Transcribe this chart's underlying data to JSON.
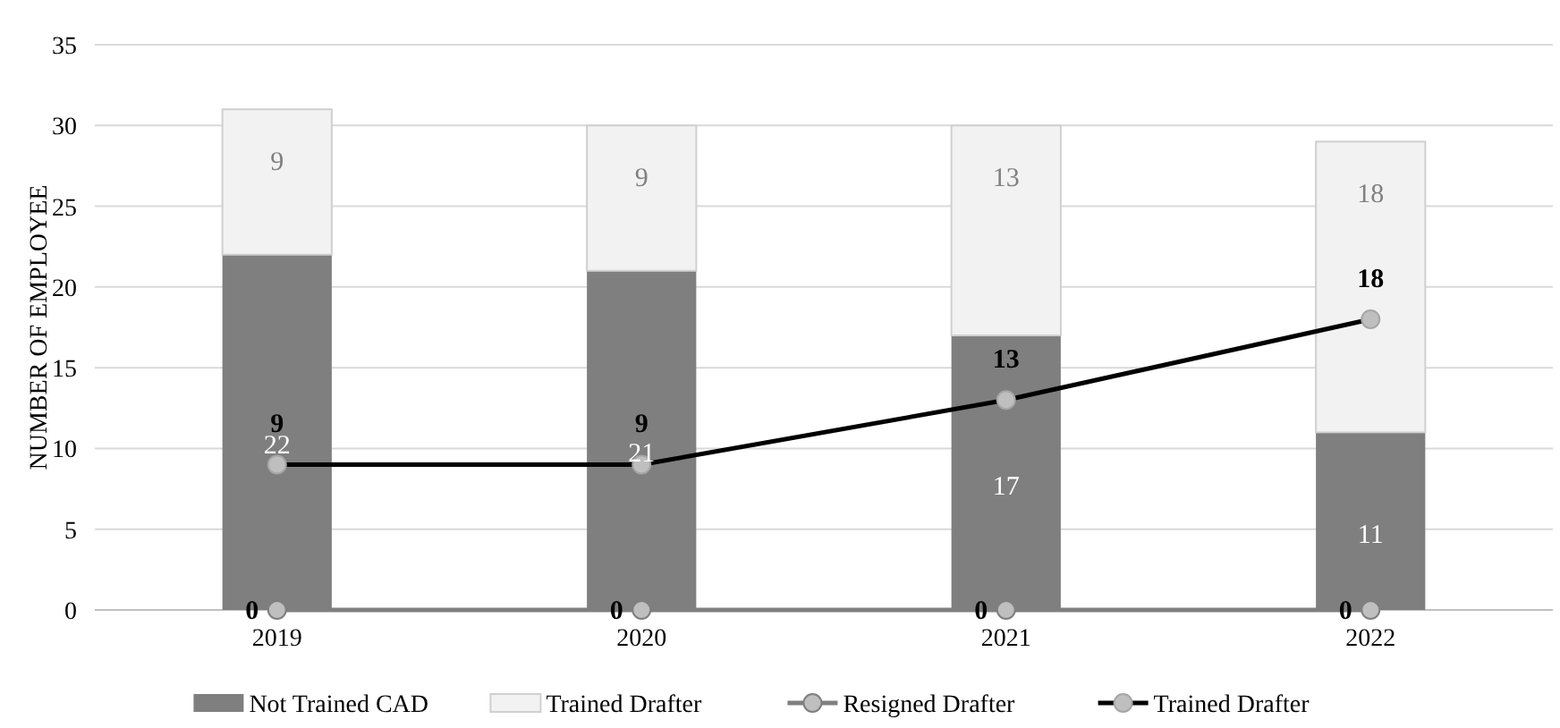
{
  "chart_data": {
    "type": "bar",
    "stacked": true,
    "ylabel": "NUMBER OF EMPLOYEE",
    "categories": [
      "2019",
      "2020",
      "2021",
      "2022"
    ],
    "series": [
      {
        "name": "Not Trained CAD",
        "color": "#7f7f7f",
        "values": [
          22,
          21,
          17,
          11
        ]
      },
      {
        "name": "Trained Drafter",
        "color": "#f2f2f2",
        "values": [
          9,
          9,
          13,
          18
        ]
      },
      {
        "name": "Resigned Drafter",
        "type": "line",
        "color": "#7f7f7f",
        "values": [
          0,
          0,
          0,
          0
        ]
      },
      {
        "name": "Trained Drafter",
        "type": "line",
        "color": "#000000",
        "values": [
          9,
          9,
          13,
          18
        ]
      }
    ],
    "ylim": [
      0,
      35
    ],
    "yticks": [
      0,
      5,
      10,
      15,
      20,
      25,
      30,
      35
    ],
    "grid": "y",
    "legend": "bottom",
    "marker": "circle",
    "line_style": "solid",
    "data_labels": true
  }
}
